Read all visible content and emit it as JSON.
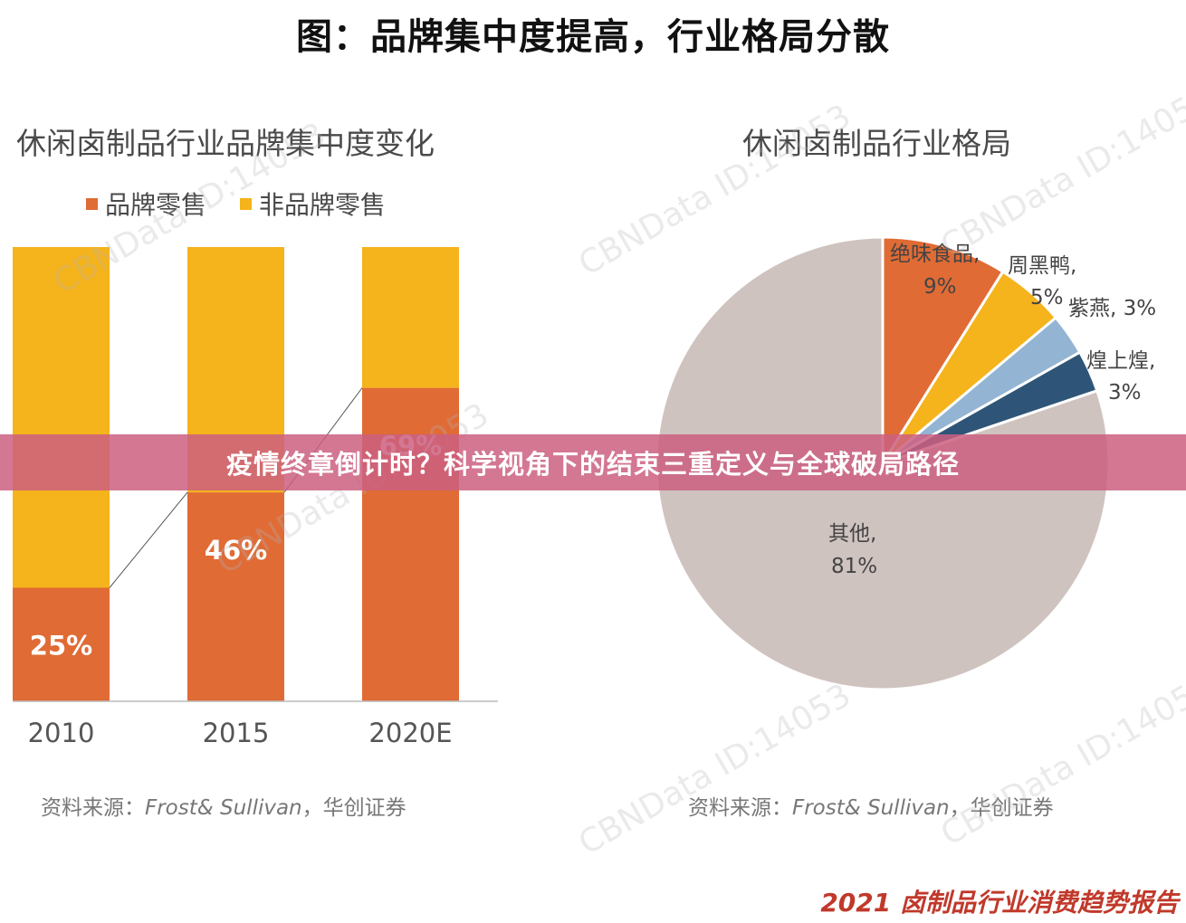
{
  "header": {
    "title": "图：品牌集中度提高，行业格局分散"
  },
  "left_panel": {
    "title": "休闲卤制品行业品牌集中度变化",
    "source": {
      "prefix": "资料来源：",
      "italic": "Frost& Sullivan",
      "suffix": "，华创证券"
    }
  },
  "right_panel": {
    "title": "休闲卤制品行业格局",
    "source": {
      "prefix": "资料来源：",
      "italic": "Frost& Sullivan",
      "suffix": "，华创证券"
    }
  },
  "banner": {
    "text": "疫情终章倒计时？科学视角下的结束三重定义与全球破局路径"
  },
  "footer": {
    "text": "2021 卤制品行业消费趋势报告"
  },
  "watermark": {
    "text": "CBNData ID:14053"
  },
  "colors": {
    "brand": "#e06b35",
    "non_brand": "#f5b31c",
    "zhouheiya": "#f5b31c",
    "ziyan": "#93b4d3",
    "huangshanghuang": "#2e5578",
    "other": "#cfc3bf",
    "juewei": "#e06b35"
  },
  "chart_data": [
    {
      "type": "bar",
      "stacked": true,
      "title": "休闲卤制品行业品牌集中度变化",
      "categories": [
        "2010",
        "2015",
        "2020E"
      ],
      "series": [
        {
          "name": "品牌零售",
          "values": [
            25,
            46,
            69
          ],
          "labels": [
            "25%",
            "46%",
            "69%"
          ]
        },
        {
          "name": "非品牌零售",
          "values": [
            75,
            54,
            31
          ]
        }
      ],
      "ylim": [
        0,
        100
      ],
      "xlabel": "",
      "ylabel": "",
      "legend": "top-left",
      "grid": false
    },
    {
      "type": "pie",
      "title": "休闲卤制品行业格局",
      "slices": [
        {
          "name": "绝味食品",
          "value": 9,
          "label_name": "绝味食品,",
          "label_value": "9%"
        },
        {
          "name": "周黑鸭",
          "value": 5,
          "label_name": "周黑鸭,",
          "label_value": "5%"
        },
        {
          "name": "紫燕",
          "value": 3,
          "label_name": "紫燕, 3%",
          "label_value": ""
        },
        {
          "name": "煌上煌",
          "value": 3,
          "label_name": "煌上煌,",
          "label_value": "3%"
        },
        {
          "name": "其他",
          "value": 81,
          "label_name": "其他,",
          "label_value": "81%"
        }
      ]
    }
  ]
}
